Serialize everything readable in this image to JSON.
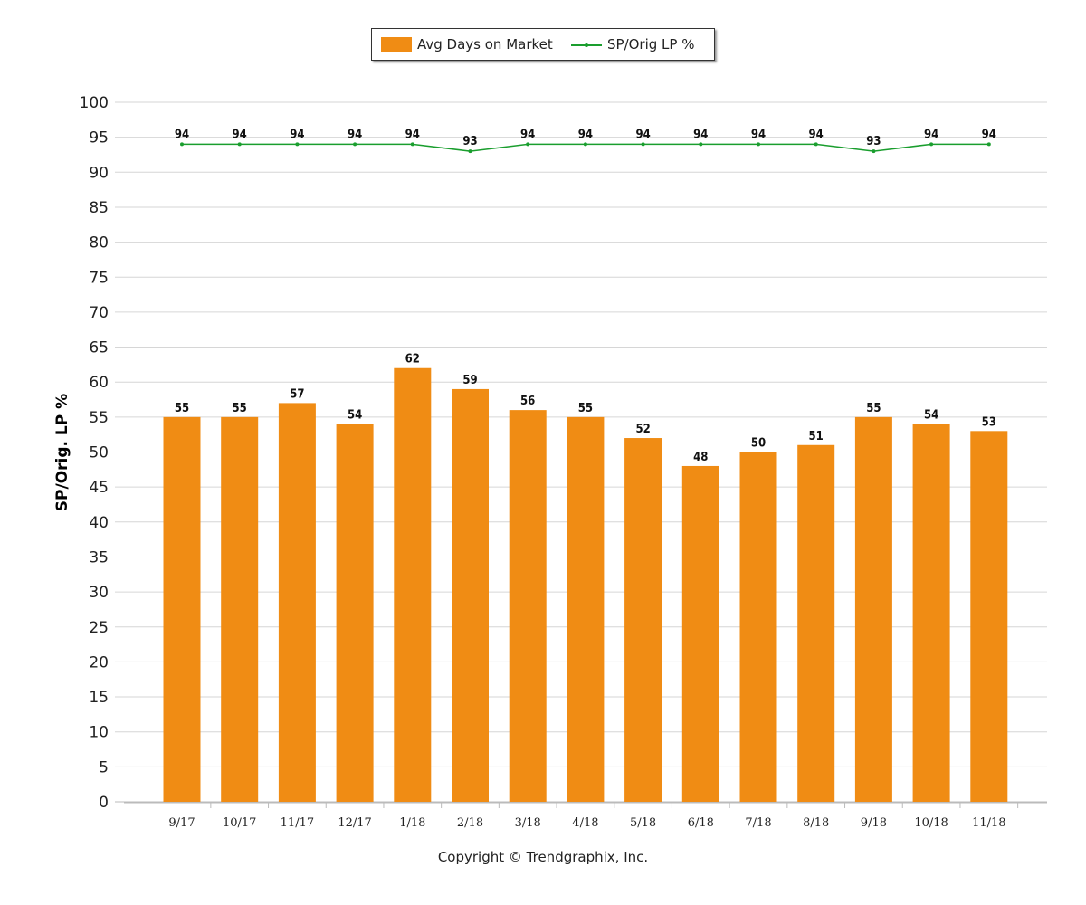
{
  "legend": {
    "bar_label": "Avg Days on Market",
    "line_label": "SP/Orig LP %"
  },
  "copyright": "Copyright © Trendgraphix, Inc.",
  "chart_data": {
    "type": "bar",
    "categories": [
      "9/17",
      "10/17",
      "11/17",
      "12/17",
      "1/18",
      "2/18",
      "3/18",
      "4/18",
      "5/18",
      "6/18",
      "7/18",
      "8/18",
      "9/18",
      "10/18",
      "11/18"
    ],
    "series": [
      {
        "name": "Avg Days on Market",
        "type": "bar",
        "color": "#f08c14",
        "values": [
          55,
          55,
          57,
          54,
          62,
          59,
          56,
          55,
          52,
          48,
          50,
          51,
          55,
          54,
          53
        ]
      },
      {
        "name": "SP/Orig LP %",
        "type": "line",
        "color": "#1a9e2e",
        "values": [
          94,
          94,
          94,
          94,
          94,
          93,
          94,
          94,
          94,
          94,
          94,
          94,
          93,
          94,
          94
        ]
      }
    ],
    "ylabel": "SP/Orig. LP %",
    "ylim": [
      0,
      100
    ],
    "yticks": [
      0,
      5,
      10,
      15,
      20,
      25,
      30,
      35,
      40,
      45,
      50,
      55,
      60,
      65,
      70,
      75,
      80,
      85,
      90,
      95,
      100
    ],
    "grid": true,
    "legend_position": "top-center"
  }
}
